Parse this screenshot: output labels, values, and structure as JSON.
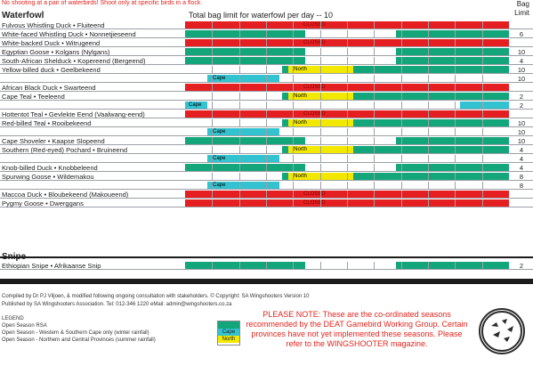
{
  "warning_text": "No shooting at a pair of waterbirds! Shoot only at specific birds in a flock.",
  "bag_header": [
    "Bag",
    "Limit"
  ],
  "waterfowl_title": "Waterfowl",
  "limit_statement": "Total bag limit for waterfowl per day -- 10",
  "labels": {
    "closed": "CLOSED",
    "cape": "Cape",
    "north": "North"
  },
  "colors": {
    "closed": "#e51f21",
    "open": "#14a67b",
    "cape": "#33c3d0",
    "north": "#f2e800",
    "grid": "#9aa0a6"
  },
  "waterfowl": [
    {
      "name": "Fulvous Whistling Duck • Fluiteend",
      "type": "closed",
      "limit": ""
    },
    {
      "name": "White-faced Whistling Duck • Nonnetjieseend",
      "type": "open",
      "limit": "6"
    },
    {
      "name": "White-backed Duck • Witrugeend",
      "type": "closed",
      "limit": ""
    },
    {
      "name": "Egyptian Goose • Kolgans (Nylgans)",
      "type": "open",
      "limit": "10"
    },
    {
      "name": "South-African Shelduck • Kopereend (Bergeend)",
      "type": "open",
      "limit": "4"
    },
    {
      "name": "Yellow-billed duck • Geelbekeend",
      "type": "north",
      "limit": "10"
    },
    {
      "name": "",
      "type": "cape",
      "limit": "10"
    },
    {
      "name": "African Black Duck • Swarteend",
      "type": "closed",
      "limit": ""
    },
    {
      "name": "Cape Teal • Teeleend",
      "type": "north",
      "limit": "2"
    },
    {
      "name": "",
      "type": "cape-wide",
      "limit": "2"
    },
    {
      "name": "Hottentot Teal • Gevlekte Eend (Vaalwang-eend)",
      "type": "closed",
      "limit": ""
    },
    {
      "name": "Red-billed Teal • Rooibekeend",
      "type": "north",
      "limit": "10"
    },
    {
      "name": "",
      "type": "cape",
      "limit": "10"
    },
    {
      "name": "Cape Shoveler • Kaapse Slopeend",
      "type": "open",
      "limit": "10"
    },
    {
      "name": "Southern (Red-eyed) Pochard • Bruineend",
      "type": "north",
      "limit": "4"
    },
    {
      "name": "",
      "type": "cape",
      "limit": "4"
    },
    {
      "name": "Knob-billed Duck • Knobbeleend",
      "type": "open",
      "limit": "4"
    },
    {
      "name": "Spurwing Goose • Wildemakou",
      "type": "north",
      "limit": "8"
    },
    {
      "name": "",
      "type": "cape",
      "limit": "8"
    },
    {
      "name": "Maccoa Duck • Bloubekeend (Makoueend)",
      "type": "closed",
      "limit": ""
    },
    {
      "name": "Pygmy Goose • Dwerggans",
      "type": "closed",
      "limit": ""
    }
  ],
  "snipe_title": "Snipe",
  "snipe": [
    {
      "name": "Ethiopian Snipe • Afrikaanse Snip",
      "type": "open",
      "limit": "2"
    }
  ],
  "footer": [
    "Compiled by Dr PJ Viljoen, & modified following ongoing consultation with stakeholders. © Copyright: SA Wingshooters Version 10",
    "Published by SA Wingshooters Association. Tel: 012-346 1220 eMail: admin@wingshooters.co.za"
  ],
  "legend": {
    "title": "LEGEND",
    "items": [
      "Open Season RSA",
      "Open Season - Western & Southern Cape only (winter rainfall)",
      "Open Season - Northern and Central Provinces (summer rainfall)"
    ]
  },
  "note": "PLEASE NOTE: These are the co-ordinated seasons recommended by the DEAT Gamebird Working Group. Certain provinces have not yet implemented these seasons. Please refer to the WINGSHOOTER magazine."
}
